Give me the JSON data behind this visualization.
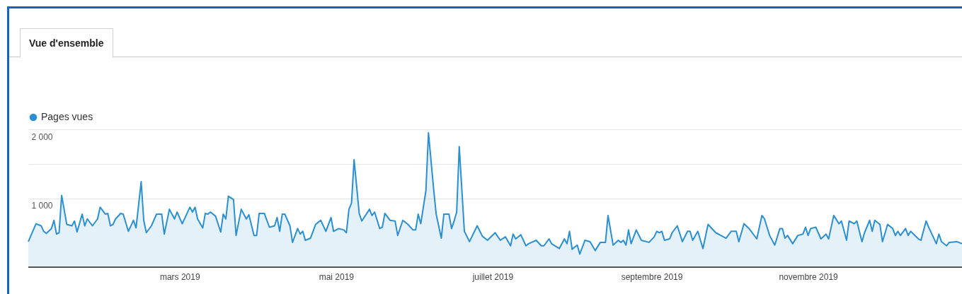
{
  "chart_data": {
    "type": "area",
    "title": "Vue d'ensemble",
    "x": [
      "2019-01-01",
      "2019-01-04",
      "2019-01-06",
      "2019-01-07",
      "2019-01-08",
      "2019-01-10",
      "2019-01-11",
      "2019-01-12",
      "2019-01-13",
      "2019-01-14",
      "2019-01-16",
      "2019-01-18",
      "2019-01-19",
      "2019-01-20",
      "2019-01-22",
      "2019-01-23",
      "2019-01-24",
      "2019-01-26",
      "2019-01-28",
      "2019-01-29",
      "2019-01-31",
      "2019-02-01",
      "2019-02-02",
      "2019-02-03",
      "2019-02-04",
      "2019-02-06",
      "2019-02-07",
      "2019-02-09",
      "2019-02-11",
      "2019-02-12",
      "2019-02-14",
      "2019-02-15",
      "2019-02-16",
      "2019-02-18",
      "2019-02-20",
      "2019-02-22",
      "2019-02-23",
      "2019-02-25",
      "2019-02-27",
      "2019-02-28",
      "2019-03-02",
      "2019-03-05",
      "2019-03-06",
      "2019-03-07",
      "2019-03-08",
      "2019-03-10",
      "2019-03-11",
      "2019-03-12",
      "2019-03-13",
      "2019-03-15",
      "2019-03-17",
      "2019-03-18",
      "2019-03-19",
      "2019-03-20",
      "2019-03-22",
      "2019-03-23",
      "2019-03-25",
      "2019-03-27",
      "2019-03-28",
      "2019-03-30",
      "2019-03-31",
      "2019-04-01",
      "2019-04-03",
      "2019-04-05",
      "2019-04-07",
      "2019-04-08",
      "2019-04-09",
      "2019-04-10",
      "2019-04-11",
      "2019-04-13",
      "2019-04-14",
      "2019-04-16",
      "2019-04-17",
      "2019-04-18",
      "2019-04-19",
      "2019-04-21",
      "2019-04-23",
      "2019-04-25",
      "2019-04-27",
      "2019-04-29",
      "2019-04-30",
      "2019-05-02",
      "2019-05-04",
      "2019-05-05",
      "2019-05-06",
      "2019-05-07",
      "2019-05-08",
      "2019-05-10",
      "2019-05-11",
      "2019-05-14",
      "2019-05-15",
      "2019-05-16",
      "2019-05-18",
      "2019-05-19",
      "2019-05-20",
      "2019-05-22",
      "2019-05-24",
      "2019-05-25",
      "2019-05-27",
      "2019-05-29",
      "2019-05-31",
      "2019-06-01",
      "2019-06-02",
      "2019-06-03",
      "2019-06-05",
      "2019-06-06",
      "2019-06-08",
      "2019-06-09",
      "2019-06-11",
      "2019-06-12",
      "2019-06-14",
      "2019-06-15",
      "2019-06-16",
      "2019-06-17",
      "2019-06-18",
      "2019-06-20",
      "2019-06-22",
      "2019-06-25",
      "2019-06-27",
      "2019-06-29",
      "2019-07-02",
      "2019-07-04",
      "2019-07-06",
      "2019-07-08",
      "2019-07-09",
      "2019-07-10",
      "2019-07-12",
      "2019-07-14",
      "2019-07-15",
      "2019-07-18",
      "2019-07-20",
      "2019-07-21",
      "2019-07-23",
      "2019-07-24",
      "2019-07-27",
      "2019-07-29",
      "2019-07-30",
      "2019-07-31",
      "2019-08-01",
      "2019-08-03",
      "2019-08-04",
      "2019-08-06",
      "2019-08-08",
      "2019-08-10",
      "2019-08-12",
      "2019-08-14",
      "2019-08-15",
      "2019-08-17",
      "2019-08-19",
      "2019-08-20",
      "2019-08-21",
      "2019-08-22",
      "2019-08-23",
      "2019-08-24",
      "2019-08-26",
      "2019-08-28",
      "2019-08-31",
      "2019-09-02",
      "2019-09-03",
      "2019-09-04",
      "2019-09-05",
      "2019-09-06",
      "2019-09-08",
      "2019-09-09",
      "2019-09-11",
      "2019-09-13",
      "2019-09-15",
      "2019-09-16",
      "2019-09-17",
      "2019-09-19",
      "2019-09-21",
      "2019-09-23",
      "2019-09-26",
      "2019-09-28",
      "2019-09-30",
      "2019-10-02",
      "2019-10-04",
      "2019-10-05",
      "2019-10-07",
      "2019-10-09",
      "2019-10-12",
      "2019-10-14",
      "2019-10-15",
      "2019-10-17",
      "2019-10-19",
      "2019-10-21",
      "2019-10-22",
      "2019-10-23",
      "2019-10-24",
      "2019-10-26",
      "2019-10-28",
      "2019-10-30",
      "2019-10-31",
      "2019-11-01",
      "2019-11-02",
      "2019-11-04",
      "2019-11-06",
      "2019-11-08",
      "2019-11-09",
      "2019-11-11",
      "2019-11-13",
      "2019-11-14",
      "2019-11-16",
      "2019-11-17",
      "2019-11-19",
      "2019-11-20",
      "2019-11-22",
      "2019-11-23",
      "2019-11-25",
      "2019-11-26",
      "2019-11-27",
      "2019-11-29",
      "2019-11-30",
      "2019-12-02",
      "2019-12-04",
      "2019-12-05",
      "2019-12-06",
      "2019-12-07",
      "2019-12-09",
      "2019-12-10",
      "2019-12-11",
      "2019-12-14",
      "2019-12-15",
      "2019-12-17",
      "2019-12-18",
      "2019-12-21",
      "2019-12-22",
      "2019-12-23",
      "2019-12-25",
      "2019-12-26",
      "2019-12-29",
      "2019-12-31"
    ],
    "series": [
      {
        "name": "Pages vues",
        "color": "#2b8fd0",
        "values": [
          370,
          630,
          600,
          520,
          490,
          560,
          680,
          480,
          500,
          1040,
          620,
          600,
          670,
          510,
          770,
          600,
          700,
          600,
          700,
          870,
          770,
          780,
          600,
          620,
          700,
          780,
          770,
          520,
          680,
          570,
          1240,
          680,
          500,
          600,
          770,
          770,
          480,
          840,
          700,
          800,
          630,
          870,
          800,
          870,
          700,
          570,
          780,
          770,
          800,
          740,
          510,
          770,
          700,
          1030,
          980,
          460,
          840,
          700,
          760,
          460,
          460,
          780,
          780,
          580,
          600,
          720,
          520,
          770,
          770,
          600,
          360,
          560,
          480,
          520,
          390,
          420,
          620,
          680,
          520,
          720,
          520,
          560,
          540,
          500,
          840,
          930,
          1560,
          780,
          670,
          840,
          750,
          800,
          560,
          580,
          780,
          680,
          670,
          460,
          680,
          620,
          540,
          540,
          770,
          630,
          1110,
          1950,
          1140,
          770,
          420,
          770,
          770,
          560,
          670,
          800,
          1750,
          520,
          370,
          600,
          450,
          390,
          500,
          390,
          440,
          310,
          480,
          410,
          470,
          310,
          340,
          390,
          310,
          310,
          410,
          340,
          270,
          410,
          340,
          520,
          260,
          320,
          190,
          390,
          370,
          240,
          360,
          360,
          750,
          320,
          390,
          360,
          390,
          320,
          540,
          340,
          540,
          390,
          360,
          440,
          520,
          500,
          520,
          390,
          410,
          500,
          600,
          370,
          520,
          520,
          390,
          520,
          270,
          620,
          500,
          460,
          420,
          520,
          520,
          370,
          630,
          560,
          410,
          750,
          700,
          460,
          320,
          560,
          560,
          420,
          460,
          340,
          460,
          480,
          580,
          460,
          560,
          580,
          410,
          480,
          410,
          750,
          630,
          670,
          390,
          670,
          630,
          670,
          370,
          500,
          680,
          520,
          680,
          620,
          370,
          620,
          560,
          460,
          520,
          460,
          560,
          460,
          520,
          410,
          390,
          670,
          580,
          340,
          480,
          370,
          310,
          360,
          370,
          340
        ]
      }
    ],
    "xlim": [
      "2019-01-01",
      "2019-12-31"
    ],
    "xticks": [
      {
        "value": "2019-03-01",
        "label": "mars 2019"
      },
      {
        "value": "2019-05-01",
        "label": "mai 2019"
      },
      {
        "value": "2019-07-01",
        "label": "juillet 2019"
      },
      {
        "value": "2019-09-01",
        "label": "septembre 2019"
      },
      {
        "value": "2019-11-01",
        "label": "novembre 2019"
      }
    ],
    "ylim": [
      0,
      2000
    ],
    "yticks": [
      {
        "value": 1000,
        "label": "1 000"
      },
      {
        "value": 1500,
        "label": null
      },
      {
        "value": 2000,
        "label": "2 000"
      }
    ],
    "grid": "y",
    "legend": "top left"
  }
}
